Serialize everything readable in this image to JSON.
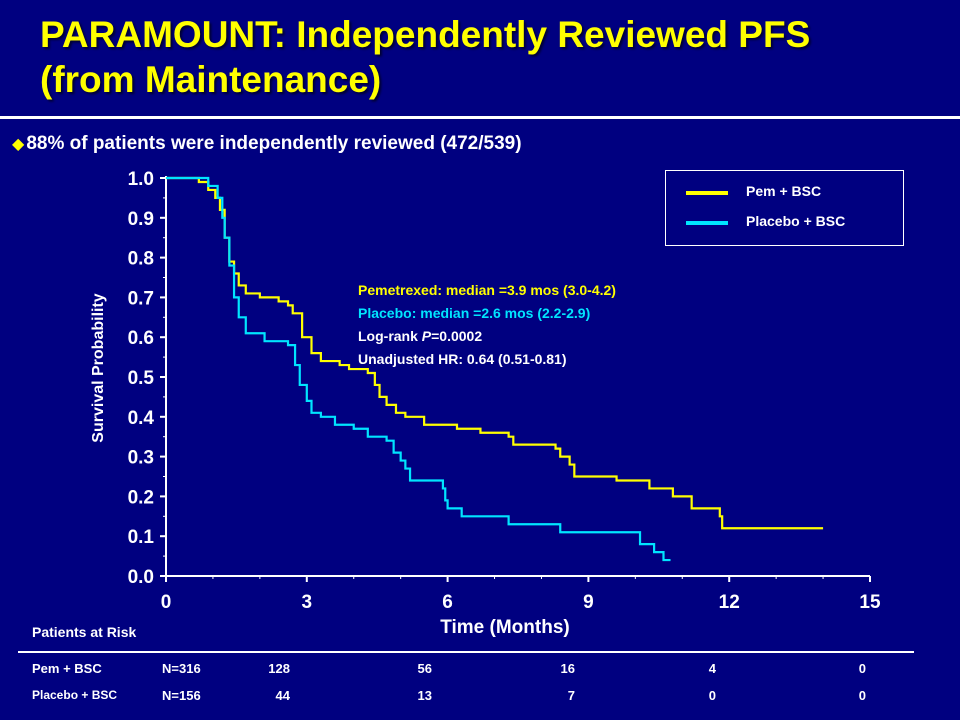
{
  "slide": {
    "title_line1": "PARAMOUNT: Independently Reviewed PFS",
    "title_line2": "(from Maintenance)",
    "bullet_icon": "diamond-bullet-icon",
    "bullet_text": "88% of patients were independently reviewed (472/539)"
  },
  "legend": {
    "items": [
      {
        "label": "Pem + BSC",
        "color": "#ffff00"
      },
      {
        "label": "Placebo + BSC",
        "color": "#00e5ff"
      }
    ]
  },
  "annotations": {
    "line1": "Pemetrexed: median =3.9 mos (3.0-4.2)",
    "line2": "Placebo: median =2.6 mos (2.2-2.9)",
    "line3_prefix": "Log-rank ",
    "line3_p": "P",
    "line3_value": "=0.0002",
    "line4": "Unadjusted HR: 0.64 (0.51-0.81)"
  },
  "risk_table": {
    "title": "Patients at Risk",
    "rows": [
      {
        "label": "Pem + BSC",
        "values": [
          "N=316",
          "128",
          "56",
          "16",
          "4",
          "0"
        ]
      },
      {
        "label": "Placebo + BSC",
        "values": [
          "N=156",
          "44",
          "13",
          "7",
          "0",
          "0"
        ]
      }
    ]
  },
  "chart_data": {
    "type": "line",
    "xlabel": "Time (Months)",
    "ylabel": "Survival Probability",
    "xlim": [
      0,
      15
    ],
    "ylim": [
      0,
      1.0
    ],
    "xticks": [
      "0",
      "3",
      "6",
      "9",
      "12",
      "15"
    ],
    "yticks": [
      "0.0",
      "0.1",
      "0.2",
      "0.3",
      "0.4",
      "0.5",
      "0.6",
      "0.7",
      "0.8",
      "0.9",
      "1.0"
    ],
    "grid": false,
    "legend_position": "top-right",
    "series": [
      {
        "name": "Pem + BSC",
        "color": "#ffff00",
        "points": [
          [
            0,
            1.0
          ],
          [
            0.45,
            1.0
          ],
          [
            0.7,
            0.99
          ],
          [
            0.9,
            0.97
          ],
          [
            1.05,
            0.95
          ],
          [
            1.15,
            0.92
          ],
          [
            1.25,
            0.85
          ],
          [
            1.35,
            0.79
          ],
          [
            1.45,
            0.76
          ],
          [
            1.55,
            0.73
          ],
          [
            1.7,
            0.71
          ],
          [
            2.0,
            0.7
          ],
          [
            2.4,
            0.69
          ],
          [
            2.6,
            0.68
          ],
          [
            2.7,
            0.66
          ],
          [
            2.9,
            0.6
          ],
          [
            3.1,
            0.56
          ],
          [
            3.3,
            0.54
          ],
          [
            3.7,
            0.53
          ],
          [
            3.9,
            0.52
          ],
          [
            4.3,
            0.51
          ],
          [
            4.45,
            0.48
          ],
          [
            4.55,
            0.45
          ],
          [
            4.7,
            0.43
          ],
          [
            4.9,
            0.41
          ],
          [
            5.1,
            0.4
          ],
          [
            5.5,
            0.38
          ],
          [
            6.2,
            0.37
          ],
          [
            6.7,
            0.36
          ],
          [
            7.3,
            0.35
          ],
          [
            7.4,
            0.33
          ],
          [
            8.3,
            0.32
          ],
          [
            8.4,
            0.3
          ],
          [
            8.6,
            0.28
          ],
          [
            8.7,
            0.25
          ],
          [
            9.6,
            0.24
          ],
          [
            10.3,
            0.22
          ],
          [
            10.8,
            0.2
          ],
          [
            11.2,
            0.17
          ],
          [
            11.8,
            0.15
          ],
          [
            11.85,
            0.12
          ],
          [
            14.0,
            0.12
          ]
        ]
      },
      {
        "name": "Placebo + BSC",
        "color": "#00e5ff",
        "points": [
          [
            0,
            1.0
          ],
          [
            0.5,
            1.0
          ],
          [
            0.9,
            0.98
          ],
          [
            1.1,
            0.95
          ],
          [
            1.2,
            0.9
          ],
          [
            1.25,
            0.85
          ],
          [
            1.35,
            0.78
          ],
          [
            1.45,
            0.7
          ],
          [
            1.55,
            0.65
          ],
          [
            1.7,
            0.61
          ],
          [
            2.1,
            0.59
          ],
          [
            2.6,
            0.58
          ],
          [
            2.75,
            0.53
          ],
          [
            2.85,
            0.48
          ],
          [
            3.0,
            0.44
          ],
          [
            3.1,
            0.41
          ],
          [
            3.3,
            0.4
          ],
          [
            3.6,
            0.38
          ],
          [
            4.0,
            0.37
          ],
          [
            4.3,
            0.35
          ],
          [
            4.7,
            0.34
          ],
          [
            4.85,
            0.31
          ],
          [
            5.0,
            0.29
          ],
          [
            5.1,
            0.27
          ],
          [
            5.2,
            0.24
          ],
          [
            5.9,
            0.22
          ],
          [
            5.95,
            0.19
          ],
          [
            6.0,
            0.17
          ],
          [
            6.3,
            0.15
          ],
          [
            7.3,
            0.13
          ],
          [
            8.4,
            0.11
          ],
          [
            10.1,
            0.08
          ],
          [
            10.4,
            0.06
          ],
          [
            10.6,
            0.04
          ],
          [
            10.75,
            0.04
          ]
        ]
      }
    ]
  }
}
